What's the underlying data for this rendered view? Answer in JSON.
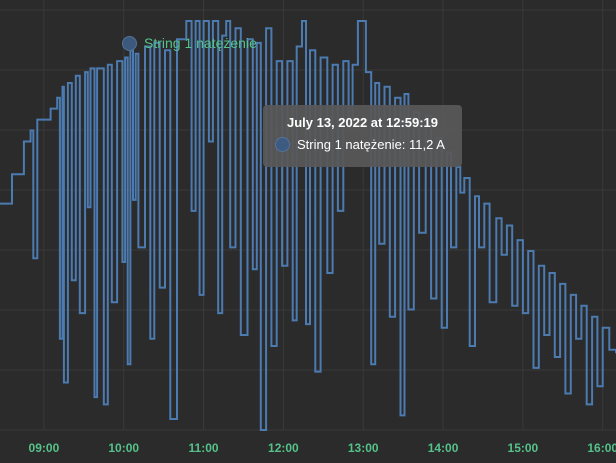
{
  "legend": {
    "label": "String 1 natężenie"
  },
  "tooltip": {
    "title": "July 13, 2022 at 12:59:19",
    "label": "String 1 natężenie",
    "value": "11,2 A",
    "text": "String 1 natężenie: 11,2 A"
  },
  "colors": {
    "background": "#2b2b2b",
    "grid": "#3a3a3a",
    "series": "#4b7bb0",
    "axis_text": "#55c28a"
  },
  "chart_data": {
    "type": "line",
    "title": "",
    "xlabel": "",
    "ylabel": "",
    "x_ticks": [
      "09:00",
      "10:00",
      "11:00",
      "12:00",
      "13:00",
      "14:00",
      "15:00",
      "16:00"
    ],
    "xlim": [
      "08:27",
      "16:10"
    ],
    "ylim": [
      0,
      11.5
    ],
    "grid": true,
    "legend_position": "top-left",
    "series": [
      {
        "name": "String 1 natężenie",
        "x": [
          "08:27",
          "08:36",
          "08:45",
          "08:50",
          "08:52",
          "08:55",
          "09:05",
          "09:10",
          "09:12",
          "09:14",
          "09:15",
          "09:18",
          "09:21",
          "09:24",
          "09:27",
          "09:31",
          "09:33",
          "09:35",
          "09:38",
          "09:40",
          "09:45",
          "09:48",
          "09:51",
          "09:55",
          "09:59",
          "10:01",
          "10:03",
          "10:05",
          "10:07",
          "10:09",
          "10:11",
          "10:16",
          "10:20",
          "10:23",
          "10:27",
          "10:31",
          "10:35",
          "10:40",
          "10:47",
          "10:51",
          "10:54",
          "10:57",
          "11:00",
          "11:04",
          "11:07",
          "11:11",
          "11:14",
          "11:17",
          "11:20",
          "11:24",
          "11:28",
          "11:33",
          "11:37",
          "11:40",
          "11:43",
          "11:47",
          "11:51",
          "11:55",
          "11:59",
          "12:03",
          "12:07",
          "12:10",
          "12:14",
          "12:17",
          "12:20",
          "12:24",
          "12:28",
          "12:33",
          "12:37",
          "12:41",
          "12:45",
          "12:49",
          "12:52",
          "12:56",
          "12:59",
          "13:02",
          "13:06",
          "13:09",
          "13:12",
          "13:16",
          "13:20",
          "13:24",
          "13:28",
          "13:31",
          "13:34",
          "13:38",
          "13:42",
          "13:47",
          "13:51",
          "13:55",
          "13:59",
          "14:03",
          "14:06",
          "14:10",
          "14:13",
          "14:16",
          "14:20",
          "14:24",
          "14:27",
          "14:31",
          "14:35",
          "14:40",
          "14:44",
          "14:48",
          "14:52",
          "14:56",
          "15:00",
          "15:04",
          "15:08",
          "15:12",
          "15:16",
          "15:20",
          "15:24",
          "15:28",
          "15:32",
          "15:36",
          "15:40",
          "15:44",
          "15:48",
          "15:52",
          "15:56",
          "16:00",
          "16:05",
          "16:10"
        ],
        "y": [
          6.2,
          7.0,
          7.9,
          8.2,
          4.7,
          8.5,
          8.8,
          9.1,
          2.5,
          9.4,
          1.3,
          9.5,
          4.1,
          9.7,
          3.2,
          9.8,
          6.1,
          9.9,
          0.9,
          9.9,
          0.7,
          10.0,
          3.5,
          10.1,
          4.6,
          10.2,
          1.8,
          10.4,
          6.3,
          10.3,
          5.0,
          10.5,
          2.5,
          10.6,
          3.9,
          10.4,
          0.3,
          10.7,
          11.2,
          6.0,
          11.2,
          3.7,
          11.2,
          7.9,
          11.2,
          3.2,
          10.8,
          11.2,
          5.0,
          11.0,
          2.6,
          10.7,
          4.4,
          10.6,
          0.0,
          11.0,
          2.3,
          10.1,
          4.5,
          10.1,
          3.0,
          10.5,
          11.2,
          2.9,
          10.4,
          1.6,
          10.2,
          4.3,
          10.0,
          6.0,
          10.1,
          8.3,
          10.0,
          11.2,
          11.2,
          9.8,
          1.8,
          9.5,
          5.1,
          9.4,
          3.1,
          9.1,
          0.4,
          9.2,
          3.3,
          8.7,
          5.4,
          8.6,
          3.6,
          8.0,
          2.8,
          7.6,
          5.0,
          7.2,
          6.5,
          6.9,
          2.3,
          6.4,
          5.0,
          6.2,
          3.5,
          5.8,
          4.8,
          5.6,
          3.4,
          5.2,
          3.2,
          4.9,
          1.7,
          4.5,
          2.6,
          4.3,
          2.0,
          4.0,
          1.0,
          3.7,
          2.5,
          3.4,
          0.7,
          3.1,
          1.2,
          2.8,
          2.2,
          2.1
        ]
      }
    ]
  }
}
